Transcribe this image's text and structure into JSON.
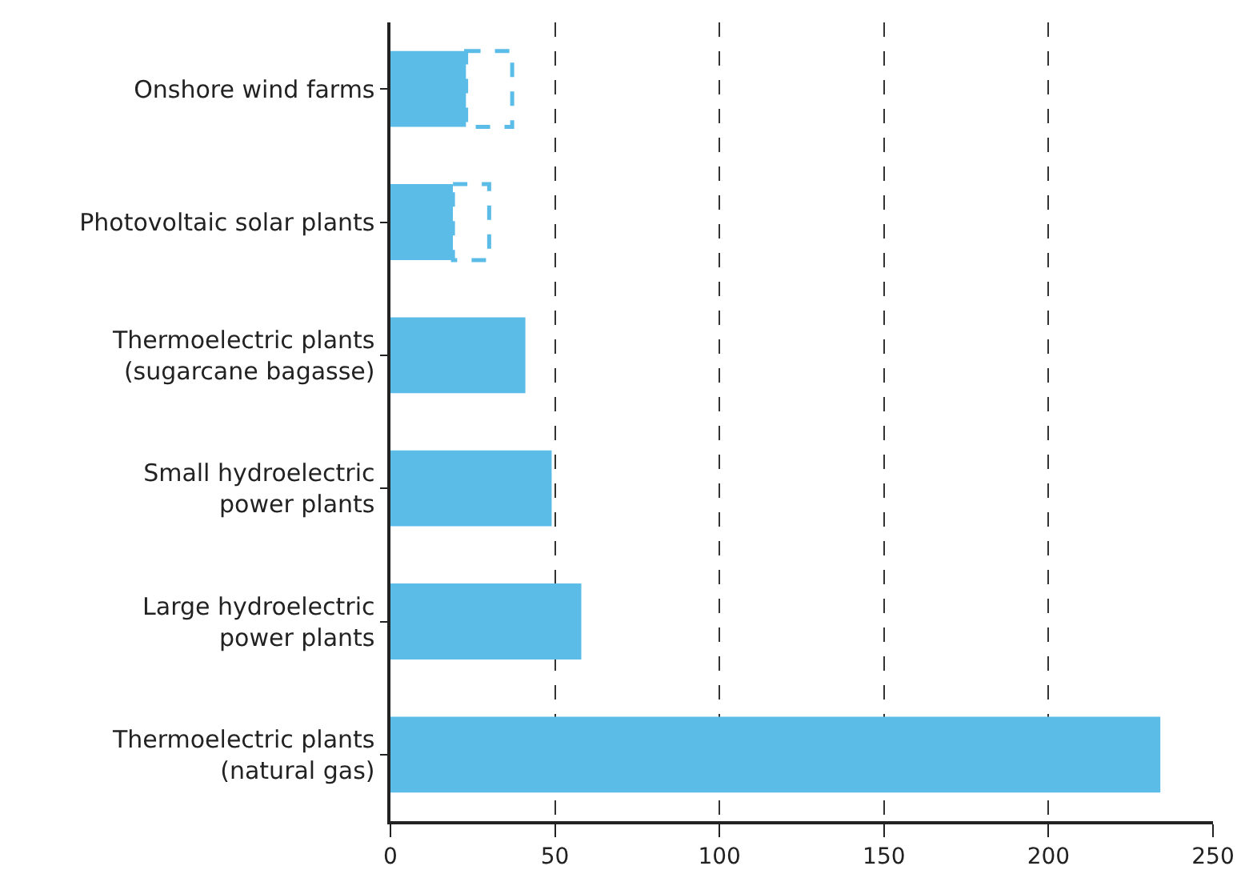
{
  "chart_data": {
    "type": "bar",
    "orientation": "horizontal",
    "stacked": true,
    "categories": [
      "Onshore wind farms",
      "Photovoltaic solar plants",
      "Thermoelectric plants\n(sugarcane bagasse)",
      "Small hydroelectric\npower plants",
      "Large hydroelectric\npower plants",
      "Thermoelectric plants\n(natural gas)"
    ],
    "series": [
      {
        "color": "#5bbce8",
        "values": [
          23,
          19,
          41,
          49,
          58,
          234
        ]
      },
      {
        "color": "#5bbce8",
        "line_style": "dashed",
        "values": [
          14,
          11,
          null,
          null,
          null,
          null
        ]
      }
    ],
    "xlim": [
      0,
      250
    ],
    "xticks": [
      0,
      50,
      100,
      150,
      200,
      250
    ],
    "grid": "x"
  }
}
